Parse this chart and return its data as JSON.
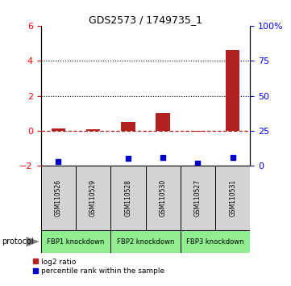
{
  "title": "GDS2573 / 1749735_1",
  "samples": [
    "GSM110526",
    "GSM110529",
    "GSM110528",
    "GSM110530",
    "GSM110527",
    "GSM110531"
  ],
  "log2_ratio": [
    0.12,
    0.1,
    0.5,
    1.0,
    -0.05,
    4.6
  ],
  "percentile_rank": [
    3.0,
    null,
    5.5,
    5.9,
    2.0,
    5.9
  ],
  "left_ylim": [
    -2,
    6
  ],
  "right_ylim": [
    0,
    100
  ],
  "left_yticks": [
    -2,
    0,
    2,
    4,
    6
  ],
  "right_yticks": [
    0,
    25,
    50,
    75,
    100
  ],
  "right_yticklabels": [
    "0",
    "25",
    "50",
    "75",
    "100%"
  ],
  "dotted_lines": [
    2,
    4
  ],
  "zero_line": 0,
  "bar_color": "#b22222",
  "scatter_color": "#0000cc",
  "groups": [
    {
      "label": "FBP1 knockdown",
      "samples": [
        0,
        1
      ]
    },
    {
      "label": "FBP2 knockdown",
      "samples": [
        2,
        3
      ]
    },
    {
      "label": "FBP3 knockdown",
      "samples": [
        4,
        5
      ]
    }
  ],
  "group_color": "#90ee90",
  "sample_box_color": "#d3d3d3",
  "legend_log2": "log2 ratio",
  "legend_pct": "percentile rank within the sample",
  "protocol_label": "protocol"
}
